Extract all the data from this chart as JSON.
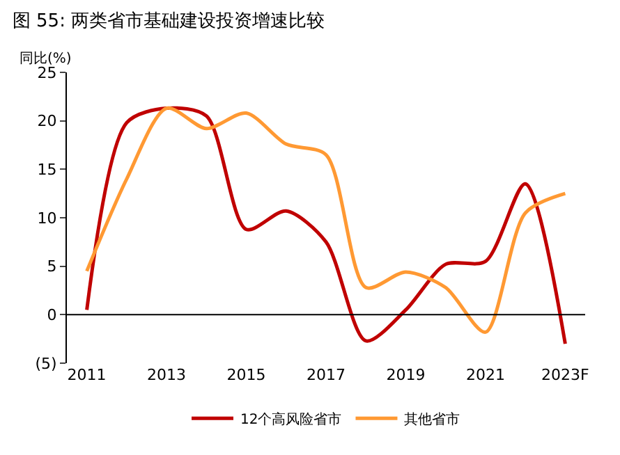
{
  "chart_data": {
    "type": "line",
    "title": "图 55: 两类省市基础建设投资增速比较",
    "ylabel": "同比(%)",
    "categories": [
      "2011",
      null,
      "2013",
      null,
      "2015",
      null,
      "2017",
      null,
      "2019",
      null,
      "2021",
      null,
      "2023F"
    ],
    "series": [
      {
        "name": "12个高风险省市",
        "color": "#c00000",
        "values": [
          0.5,
          19.8,
          21.3,
          20.5,
          8.8,
          10.7,
          7.5,
          -2.7,
          0.5,
          5.2,
          5.5,
          13.5,
          -3
        ]
      },
      {
        "name": "其他省市",
        "color": "#ff9933",
        "values": [
          4.5,
          14,
          21.3,
          19.2,
          20.8,
          17.6,
          16.5,
          2.8,
          4.4,
          2.8,
          -1.8,
          10.5,
          12.5
        ]
      }
    ],
    "ylim": [
      -5,
      25
    ],
    "yticks": [
      {
        "value": -5,
        "label": "(5)"
      },
      0,
      5,
      10,
      15,
      20,
      25
    ],
    "ref_lines": [
      {
        "axis": "y",
        "value": 0
      }
    ],
    "legend": "bottom",
    "marker": "none",
    "line_style": "solid"
  }
}
